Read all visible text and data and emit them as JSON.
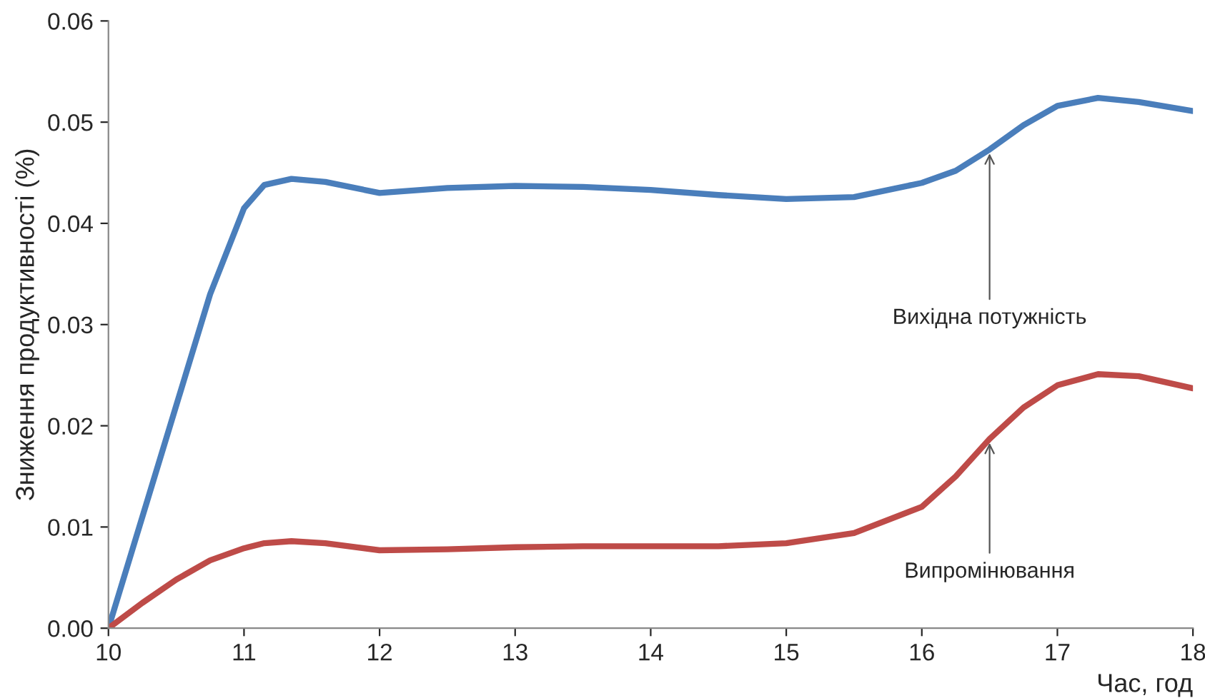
{
  "chart_data": {
    "type": "line",
    "xlabel": "Час, год",
    "ylabel": "Зниження продуктивності (%)",
    "x": [
      10,
      10.25,
      10.5,
      10.75,
      11,
      11.15,
      11.35,
      11.6,
      12,
      12.5,
      13,
      13.5,
      14,
      14.5,
      15,
      15.5,
      16,
      16.25,
      16.5,
      16.75,
      17,
      17.3,
      17.6,
      18
    ],
    "series": [
      {
        "color": "#4a7ebb",
        "values": [
          0,
          0.011,
          0.022,
          0.033,
          0.0415,
          0.0438,
          0.0444,
          0.0441,
          0.043,
          0.0435,
          0.0437,
          0.0436,
          0.0433,
          0.0428,
          0.0424,
          0.0426,
          0.044,
          0.0452,
          0.0473,
          0.0497,
          0.0516,
          0.0524,
          0.052,
          0.0511
        ]
      },
      {
        "color": "#be4b48",
        "values": [
          0,
          0.0025,
          0.0048,
          0.0067,
          0.0079,
          0.0084,
          0.0086,
          0.0084,
          0.0077,
          0.0078,
          0.008,
          0.0081,
          0.0081,
          0.0081,
          0.0084,
          0.0094,
          0.012,
          0.015,
          0.0187,
          0.0218,
          0.024,
          0.0251,
          0.0249,
          0.0237
        ]
      }
    ],
    "xlim": [
      10,
      18
    ],
    "xticks": [
      10,
      11,
      12,
      13,
      14,
      15,
      16,
      17,
      18
    ],
    "ylim": [
      0,
      0.06
    ],
    "yticks": [
      {
        "value": 0,
        "label": "0.00"
      },
      {
        "value": 0.01,
        "label": "0.01"
      },
      {
        "value": 0.02,
        "label": "0.02"
      },
      {
        "value": 0.03,
        "label": "0.03"
      },
      {
        "value": 0.04,
        "label": "0.04"
      },
      {
        "value": 0.05,
        "label": "0.05"
      },
      {
        "value": 0.06,
        "label": "0.06"
      }
    ],
    "annotations": [
      {
        "text": "Вихідна потужність",
        "x": 16.5,
        "y": 0.0473
      },
      {
        "text": "Випромінювання",
        "x": 16.5,
        "y": 0.0187
      }
    ],
    "grid": false,
    "legend": false,
    "marker": "none",
    "line_style": "solid"
  }
}
